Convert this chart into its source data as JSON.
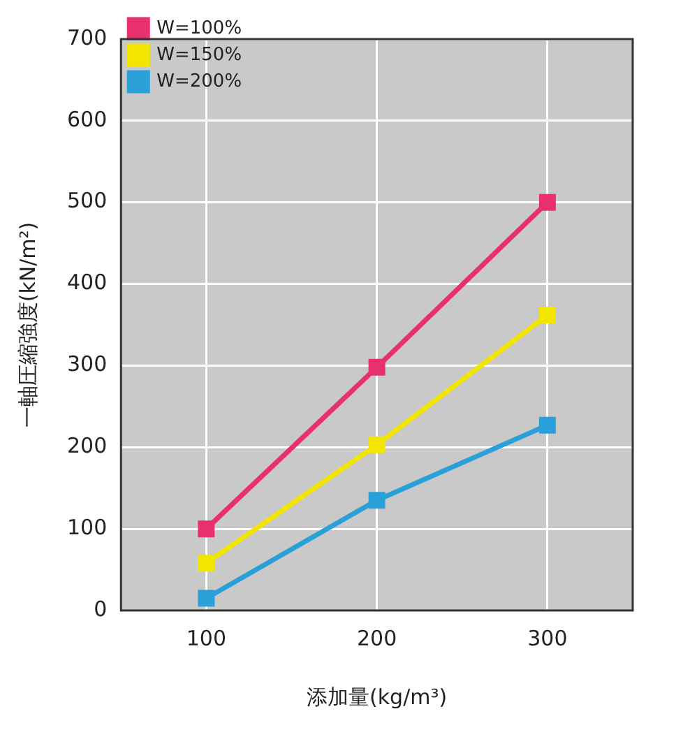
{
  "chart_data": {
    "type": "line",
    "xlabel": "添加量(kg/m³)",
    "ylabel": "一軸圧縮強度(kN/m²)",
    "x": [
      100,
      200,
      300
    ],
    "series": [
      {
        "name": "W=100%",
        "color": "#e8306e",
        "values": [
          100,
          298,
          500
        ]
      },
      {
        "name": "W=150%",
        "color": "#f2e600",
        "values": [
          58,
          203,
          362
        ]
      },
      {
        "name": "W=200%",
        "color": "#2aa0d8",
        "values": [
          15,
          135,
          227
        ]
      }
    ],
    "xlim": [
      50,
      350
    ],
    "xticks": [
      100,
      200,
      300
    ],
    "ylim": [
      0,
      700
    ],
    "yticks": [
      0,
      100,
      200,
      300,
      400,
      500,
      600,
      700
    ],
    "grid": true,
    "legend": "top left",
    "marker": "square",
    "line_style": "solid"
  }
}
